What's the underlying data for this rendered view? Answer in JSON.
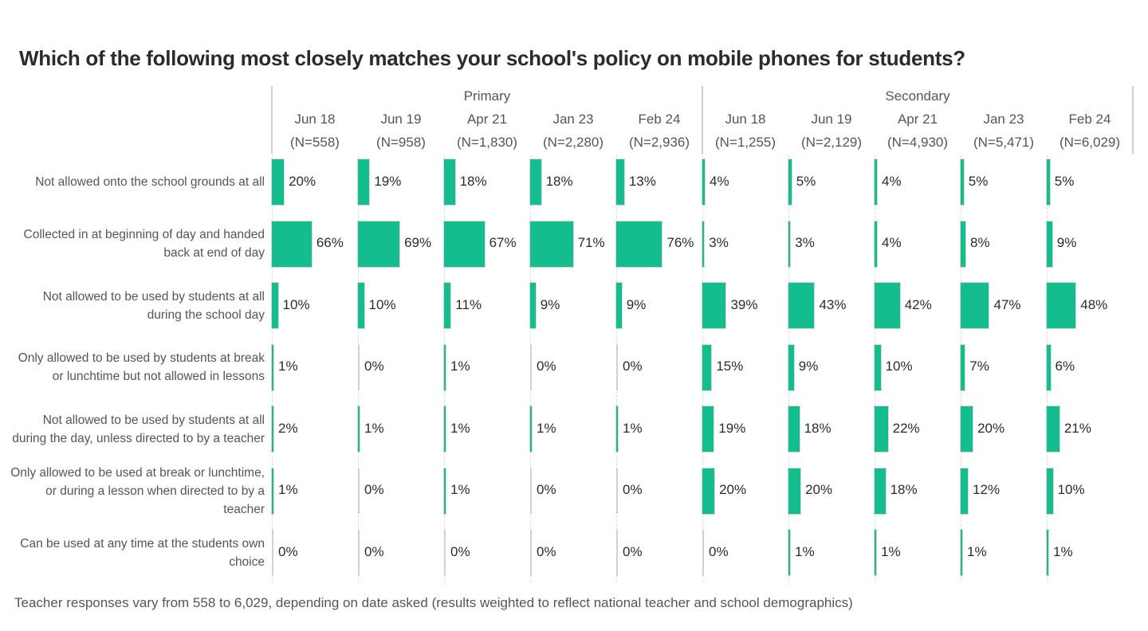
{
  "chart_data": {
    "type": "bar",
    "orientation": "horizontal",
    "layout": "small-multiples",
    "title": "Which of the following most closely matches your school's policy on mobile phones for students?",
    "footnote": "Teacher responses vary from 558 to 6,029, depending on date asked (results weighted to reflect national teacher and school demographics)",
    "bar_color": "#13bd8e",
    "value_format": "percent",
    "xlim": [
      0,
      100
    ],
    "groups": [
      {
        "name": "Primary",
        "columns": [
          {
            "date": "Jun 18",
            "n": "(N=558)"
          },
          {
            "date": "Jun 19",
            "n": "(N=958)"
          },
          {
            "date": "Apr 21",
            "n": "(N=1,830)"
          },
          {
            "date": "Jan 23",
            "n": "(N=2,280)"
          },
          {
            "date": "Feb 24",
            "n": "(N=2,936)"
          }
        ]
      },
      {
        "name": "Secondary",
        "columns": [
          {
            "date": "Jun 18",
            "n": "(N=1,255)"
          },
          {
            "date": "Jun 19",
            "n": "(N=2,129)"
          },
          {
            "date": "Apr 21",
            "n": "(N=4,930)"
          },
          {
            "date": "Jan 23",
            "n": "(N=5,471)"
          },
          {
            "date": "Feb 24",
            "n": "(N=6,029)"
          }
        ]
      }
    ],
    "categories": [
      "Not allowed onto the school grounds at all",
      "Collected in at beginning of day and handed back at end of day",
      "Not allowed to be used by students at all during the school day",
      "Only allowed to be used by students at break or lunchtime but not allowed in lessons",
      "Not allowed to be used by students at all during the day, unless directed to by a teacher",
      "Only allowed to be used at break or lunchtime, or during a lesson when directed to by a teacher",
      "Can be used at any time at the students own choice"
    ],
    "values": [
      [
        20,
        19,
        18,
        18,
        13,
        4,
        5,
        4,
        5,
        5
      ],
      [
        66,
        69,
        67,
        71,
        76,
        3,
        3,
        4,
        8,
        9
      ],
      [
        10,
        10,
        11,
        9,
        9,
        39,
        43,
        42,
        47,
        48
      ],
      [
        1,
        0,
        1,
        0,
        0,
        15,
        9,
        10,
        7,
        6
      ],
      [
        2,
        1,
        1,
        1,
        1,
        19,
        18,
        22,
        20,
        21
      ],
      [
        1,
        0,
        1,
        0,
        0,
        20,
        20,
        18,
        12,
        10
      ],
      [
        0,
        0,
        0,
        0,
        0,
        0,
        1,
        1,
        1,
        1
      ]
    ]
  }
}
